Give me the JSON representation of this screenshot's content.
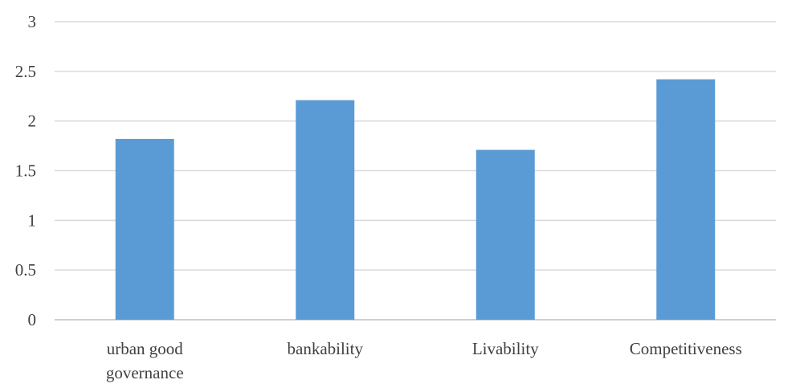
{
  "chart_data": {
    "type": "bar",
    "title": "",
    "xlabel": "",
    "ylabel": "",
    "categories": [
      "urban good governance",
      "bankability",
      "Livability",
      "Competitiveness"
    ],
    "category_label_lines": [
      [
        "urban good",
        "governance"
      ],
      [
        "bankability"
      ],
      [
        "Livability"
      ],
      [
        "Competitiveness"
      ]
    ],
    "values": [
      1.82,
      2.21,
      1.71,
      2.42
    ],
    "ylim": [
      0,
      3
    ],
    "yticks": [
      "0",
      "0.5",
      "1",
      "1.5",
      "2",
      "2.5",
      "3"
    ],
    "grid": true,
    "legend": "none",
    "colors": {
      "bar": "#5b9bd5",
      "grid": "#d9d9d9",
      "axis": "#bfbfbf",
      "text": "#404040"
    }
  }
}
